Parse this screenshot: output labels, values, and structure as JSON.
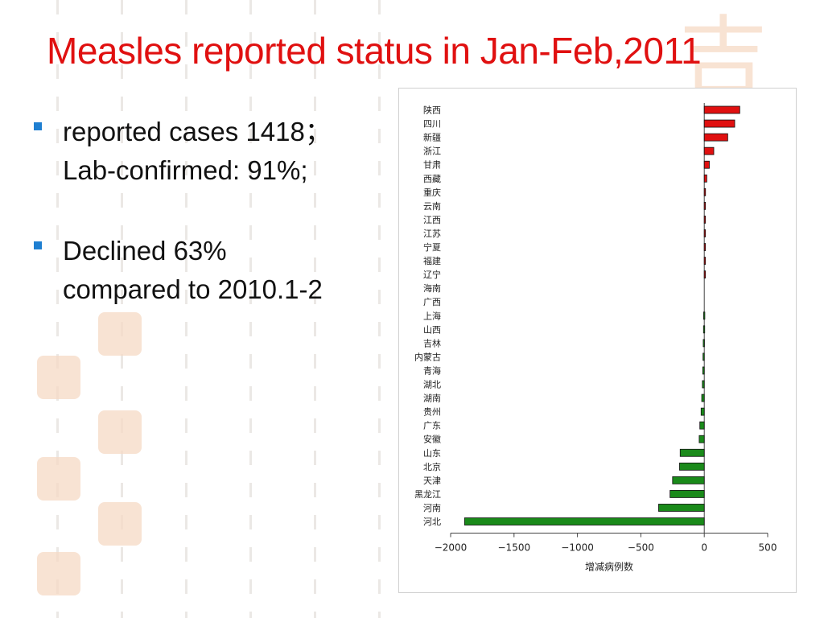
{
  "slide": {
    "title": "Measles reported status in Jan-Feb,2011",
    "bullets": [
      {
        "lines": [
          "reported cases 1418；",
          "Lab-confirmed: 91%;"
        ]
      },
      {
        "lines": [
          "Declined   63%",
          "compared to 2010.1-2"
        ]
      }
    ]
  },
  "colors": {
    "title": "#e01010",
    "bullet_marker": "#1f7fd1",
    "positive_bar": "#e01010",
    "negative_bar": "#1a8a1a"
  },
  "chart_data": {
    "type": "bar",
    "orientation": "horizontal",
    "categories": [
      "陕西",
      "四川",
      "新疆",
      "浙江",
      "甘肃",
      "西藏",
      "重庆",
      "云南",
      "江西",
      "江苏",
      "宁夏",
      "福建",
      "辽宁",
      "海南",
      "广西",
      "上海",
      "山西",
      "吉林",
      "内蒙古",
      "青海",
      "湖北",
      "湖南",
      "贵州",
      "广东",
      "安徽",
      "山东",
      "北京",
      "天津",
      "黑龙江",
      "河南",
      "河北"
    ],
    "values": [
      280,
      240,
      185,
      75,
      40,
      20,
      10,
      8,
      8,
      6,
      5,
      4,
      3,
      0,
      0,
      -5,
      -6,
      -8,
      -10,
      -12,
      -15,
      -20,
      -25,
      -35,
      -40,
      -190,
      -195,
      -250,
      -270,
      -360,
      -1890
    ],
    "xlabel": "增减病例数",
    "ylabel": "",
    "xlim": [
      -2000,
      500
    ],
    "xticks": [
      -2000,
      -1500,
      -1000,
      -500,
      0,
      500
    ],
    "grid": false,
    "legend": "none"
  }
}
